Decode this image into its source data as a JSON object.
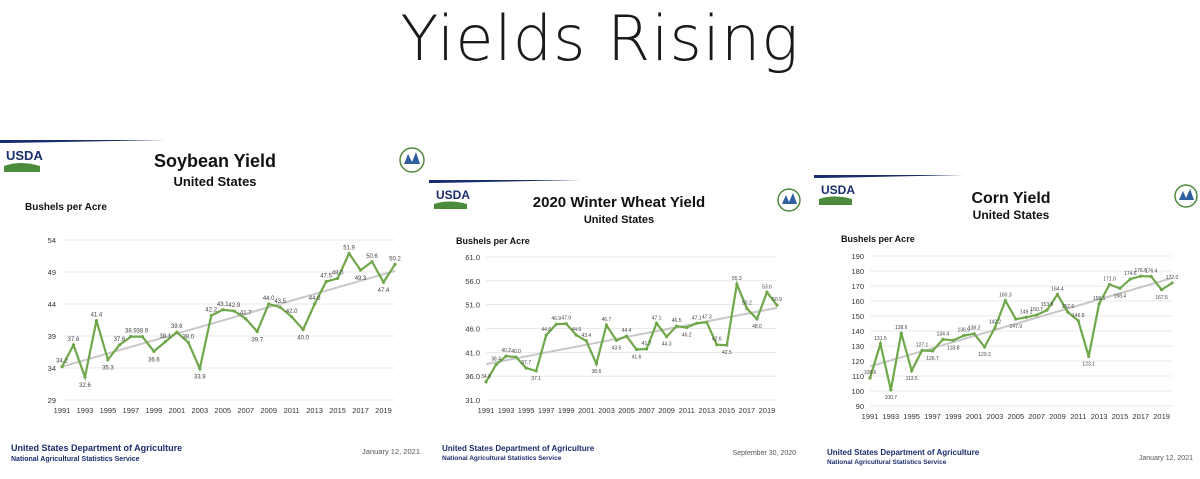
{
  "slide": {
    "title": "Yields Rising"
  },
  "brand": {
    "usda_logo_text": "USDA",
    "green": "#4c8a3c",
    "navy": "#1a2e6e",
    "line_color": "#6ea84a",
    "trend_color": "#c8c8c8"
  },
  "footer": {
    "org_name": "United States Department of Agriculture",
    "org_sub": "National Agricultural Statistics Service"
  },
  "panels": [
    {
      "title": "Soybean Yield",
      "subtitle": "United States",
      "ylabel": "Bushels per Acre",
      "date": "January 12, 2021"
    },
    {
      "title": "2020 Winter Wheat Yield",
      "subtitle": "United States",
      "ylabel": "Bushels per Acre",
      "date": "September 30, 2020"
    },
    {
      "title": "Corn Yield",
      "subtitle": "United States",
      "ylabel": "Bushels per Acre",
      "date": "January 12, 2021"
    }
  ],
  "chart_data": [
    {
      "type": "line",
      "title": "Soybean Yield",
      "subtitle": "United States",
      "ylabel": "Bushels per Acre",
      "x": [
        1991,
        1992,
        1993,
        1994,
        1995,
        1996,
        1997,
        1998,
        1999,
        2000,
        2001,
        2002,
        2003,
        2004,
        2005,
        2006,
        2007,
        2008,
        2009,
        2010,
        2011,
        2012,
        2013,
        2014,
        2015,
        2016,
        2017,
        2018,
        2019,
        2020
      ],
      "values": [
        34.2,
        37.6,
        32.6,
        41.4,
        35.3,
        37.6,
        38.9,
        38.9,
        36.6,
        38.1,
        39.6,
        38.0,
        33.9,
        42.2,
        43.1,
        42.9,
        41.7,
        39.7,
        44.0,
        43.5,
        42.0,
        40.0,
        44.0,
        47.5,
        48.0,
        51.9,
        49.3,
        50.6,
        47.4,
        50.2
      ],
      "labels": [
        "34.2",
        "37.6",
        "32.6",
        "41.4",
        "35.3",
        "37.6",
        "38.9",
        "38.9",
        "36.6",
        "38.1",
        "39.6",
        "38.0",
        "33.9",
        "42.2",
        "43.1",
        "42.9",
        "41.7",
        "39.7",
        "44.0",
        "43.5",
        "42.0",
        "40.0",
        "44.0",
        "47.5",
        "48.0",
        "51.9",
        "49.3",
        "50.6",
        "47.4",
        "50.2"
      ],
      "yticks": [
        "29",
        "34",
        "39",
        "44",
        "49",
        "54"
      ],
      "ylim": [
        29,
        54
      ],
      "xticks": [
        "1991",
        "1993",
        "1995",
        "1997",
        "1999",
        "2001",
        "2003",
        "2005",
        "2007",
        "2009",
        "2011",
        "2013",
        "2015",
        "2017",
        "2019"
      ],
      "trend": true
    },
    {
      "type": "line",
      "title": "2020 Winter Wheat Yield",
      "subtitle": "United States",
      "ylabel": "Bushels per Acre",
      "x": [
        1991,
        1992,
        1993,
        1994,
        1995,
        1996,
        1997,
        1998,
        1999,
        2000,
        2001,
        2002,
        2003,
        2004,
        2005,
        2006,
        2007,
        2008,
        2009,
        2010,
        2011,
        2012,
        2013,
        2014,
        2015,
        2016,
        2017,
        2018,
        2019,
        2020
      ],
      "values": [
        34.8,
        38.4,
        40.2,
        40.0,
        37.7,
        37.1,
        44.6,
        46.9,
        47.0,
        44.6,
        43.4,
        38.6,
        46.7,
        43.5,
        44.4,
        41.6,
        41.7,
        47.1,
        44.3,
        46.5,
        46.2,
        47.1,
        47.3,
        42.6,
        42.5,
        55.3,
        50.2,
        48.0,
        53.6,
        50.9
      ],
      "labels": [
        "34.8",
        "38.4",
        "40.2",
        "40.0",
        "37.7",
        "37.1",
        "44.6",
        "46.9",
        "47.0",
        "44.6",
        "43.4",
        "38.6",
        "46.7",
        "43.5",
        "44.4",
        "41.6",
        "41.7",
        "47.1",
        "44.3",
        "46.5",
        "46.2",
        "47.1",
        "47.3",
        "42.6",
        "42.5",
        "55.3",
        "50.2",
        "48.0",
        "53.6",
        "50.9"
      ],
      "yticks": [
        "31.0",
        "36.0",
        "41.0",
        "46.0",
        "51.0",
        "56.0",
        "61.0"
      ],
      "ylim": [
        31,
        61
      ],
      "xticks": [
        "1991",
        "1993",
        "1995",
        "1997",
        "1999",
        "2001",
        "2003",
        "2005",
        "2007",
        "2009",
        "2011",
        "2013",
        "2015",
        "2017",
        "2019"
      ],
      "trend": true
    },
    {
      "type": "line",
      "title": "Corn Yield",
      "subtitle": "United States",
      "ylabel": "Bushels per Acre",
      "x": [
        1991,
        1992,
        1993,
        1994,
        1995,
        1996,
        1997,
        1998,
        1999,
        2000,
        2001,
        2002,
        2003,
        2004,
        2005,
        2006,
        2007,
        2008,
        2009,
        2010,
        2011,
        2012,
        2013,
        2014,
        2015,
        2016,
        2017,
        2018,
        2019,
        2020
      ],
      "values": [
        108.6,
        131.5,
        100.7,
        138.6,
        113.5,
        127.1,
        126.7,
        134.4,
        133.8,
        136.9,
        138.2,
        129.3,
        142.2,
        160.3,
        147.9,
        149.1,
        150.7,
        153.9,
        164.4,
        152.6,
        146.8,
        123.1,
        158.1,
        171.0,
        168.4,
        174.6,
        176.6,
        176.4,
        167.5,
        172.0
      ],
      "labels": [
        "108.6",
        "131.5",
        "100.7",
        "138.6",
        "113.5",
        "127.1",
        "126.7",
        "134.4",
        "133.8",
        "136.9",
        "138.2",
        "129.3",
        "142.2",
        "160.3",
        "147.9",
        "149.1",
        "150.7",
        "153.9",
        "164.4",
        "152.6",
        "146.8",
        "123.1",
        "158.1",
        "171.0",
        "168.4",
        "174.6",
        "176.6",
        "176.4",
        "167.5",
        "172.0"
      ],
      "yticks": [
        "90",
        "100",
        "110",
        "120",
        "130",
        "140",
        "150",
        "160",
        "170",
        "180",
        "190"
      ],
      "ylim": [
        90,
        190
      ],
      "xticks": [
        "1991",
        "1993",
        "1995",
        "1997",
        "1999",
        "2001",
        "2003",
        "2005",
        "2007",
        "2009",
        "2011",
        "2013",
        "2015",
        "2017",
        "2019"
      ],
      "trend": true
    }
  ]
}
